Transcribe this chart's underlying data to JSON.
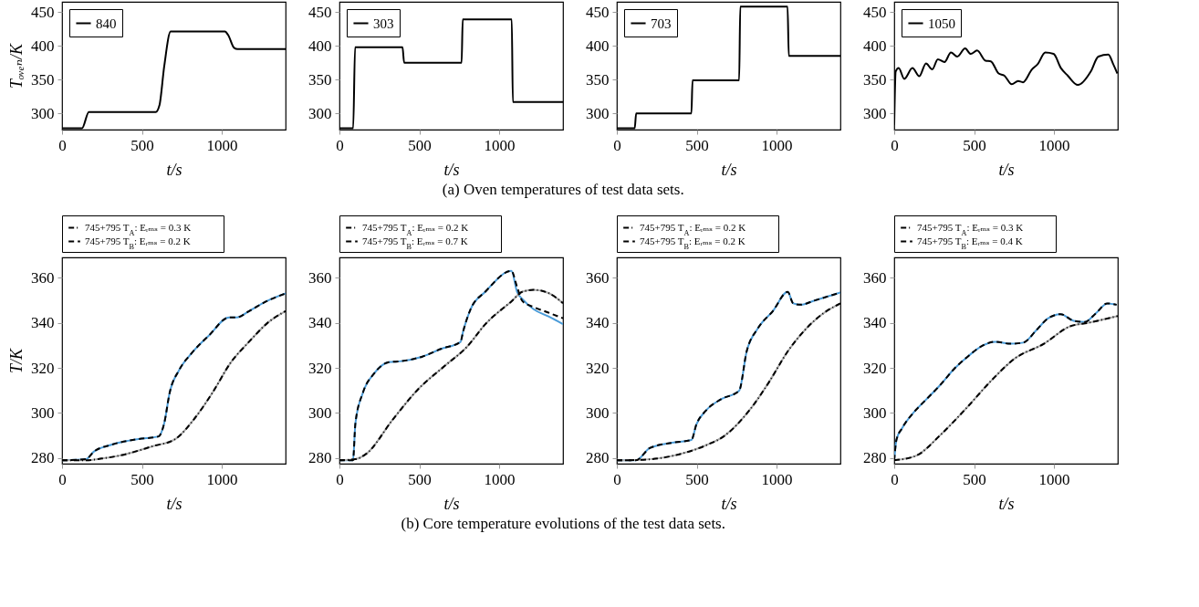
{
  "chart_data": [
    {
      "type": "line",
      "ylabel": "Tₒᵥₑₙ/K",
      "xlabel": "t/s",
      "xlim": [
        0,
        1400
      ],
      "ylim": [
        276,
        465
      ],
      "xticks": [
        0,
        500,
        1000
      ],
      "yticks": [
        300,
        350,
        400,
        450
      ],
      "legend": "top left",
      "annotations": [
        "(a) Oven temperatures of test data sets."
      ],
      "series": [
        {
          "name": "840",
          "color": "#000000",
          "x": [
            0,
            125,
            168,
            587,
            610,
            640,
            680,
            1020,
            1040,
            1077,
            1100,
            1400
          ],
          "values": [
            278,
            278,
            302,
            302,
            312,
            370,
            421,
            421,
            416,
            397,
            395,
            395
          ]
        }
      ]
    },
    {
      "type": "line",
      "xlabel": "t/s",
      "xlim": [
        0,
        1400
      ],
      "ylim": [
        276,
        465
      ],
      "xticks": [
        0,
        500,
        1000
      ],
      "yticks": [
        300,
        350,
        400,
        450
      ],
      "legend": "top left",
      "series": [
        {
          "name": "303",
          "color": "#000000",
          "x": [
            0,
            86,
            98,
            395,
            405,
            765,
            772,
            1079,
            1086,
            1400
          ],
          "values": [
            278,
            278,
            398,
            398,
            375,
            375,
            439,
            439,
            317,
            317
          ]
        }
      ]
    },
    {
      "type": "line",
      "xlabel": "t/s",
      "xlim": [
        0,
        1400
      ],
      "ylim": [
        276,
        465
      ],
      "xticks": [
        0,
        500,
        1000
      ],
      "yticks": [
        300,
        350,
        400,
        450
      ],
      "legend": "top left",
      "series": [
        {
          "name": "703",
          "color": "#000000",
          "x": [
            0,
            112,
            121,
            467,
            474,
            766,
            773,
            1069,
            1077,
            1400
          ],
          "values": [
            278,
            278,
            300,
            300,
            349,
            349,
            458,
            458,
            385,
            385
          ]
        }
      ]
    },
    {
      "type": "line",
      "xlabel": "t/s",
      "xlim": [
        0,
        1400
      ],
      "ylim": [
        276,
        465
      ],
      "xticks": [
        0,
        500,
        1000
      ],
      "yticks": [
        300,
        350,
        400,
        450
      ],
      "legend": "top left",
      "series": [
        {
          "name": "1050",
          "color": "#000000",
          "x": [
            0,
            9,
            28,
            63,
            114,
            157,
            199,
            238,
            273,
            315,
            355,
            395,
            444,
            479,
            519,
            572,
            605,
            654,
            689,
            736,
            776,
            806,
            862,
            899,
            946,
            998,
            1044,
            1086,
            1150,
            1231,
            1278,
            1341,
            1371,
            1397
          ],
          "values": [
            283,
            362,
            367,
            351,
            367,
            355,
            374,
            365,
            380,
            376,
            390,
            384,
            396,
            388,
            393,
            378,
            377,
            359,
            356,
            343,
            348,
            346,
            365,
            373,
            390,
            388,
            367,
            356,
            342,
            362,
            384,
            387,
            373,
            359
          ]
        }
      ]
    },
    {
      "type": "line",
      "ylabel": "T/K",
      "xlabel": "t/s",
      "xlim": [
        0,
        1400
      ],
      "ylim": [
        277.5,
        369
      ],
      "xticks": [
        0,
        500,
        1000
      ],
      "yticks": [
        280,
        300,
        320,
        340,
        360
      ],
      "legend": "top",
      "annotations": [
        "(b) Core temperature evolutions of the test data sets."
      ],
      "series": [
        {
          "color": "#4a9bd8",
          "x": [
            0,
            150,
            198,
            314,
            477,
            605,
            640,
            674,
            733,
            814,
            919,
            1047,
            1093,
            1174,
            1279,
            1400
          ],
          "values": [
            279,
            279.5,
            282.8,
            286,
            288.4,
            289.6,
            295.5,
            309,
            319,
            326.7,
            334.3,
            342.4,
            342.4,
            345.3,
            349.5,
            353
          ]
        },
        {
          "color": "#aaaaaa",
          "x": [
            0,
            150,
            250,
            360,
            570,
            709,
            826,
            942,
            1058,
            1174,
            1291,
            1400
          ],
          "values": [
            279,
            279,
            279.8,
            281.1,
            285.3,
            288.4,
            297.2,
            309,
            322.5,
            331.8,
            340.2,
            345.2
          ]
        },
        {
          "name": "745+795 T$_{A}$: Eᵣₘₛ = 0.3 K",
          "color": "#000000",
          "line_style": "dashdot",
          "x": [
            0,
            150,
            250,
            360,
            570,
            709,
            826,
            942,
            1058,
            1174,
            1291,
            1400
          ],
          "values": [
            279,
            279,
            279.8,
            281.1,
            285.3,
            288.4,
            297.2,
            309,
            322.5,
            331.8,
            340.2,
            345.2
          ]
        },
        {
          "name": "745+795 T$_{B}$: Eᵣₘₛ = 0.2 K",
          "color": "#000000",
          "line_style": "dashed",
          "x": [
            0,
            150,
            198,
            314,
            477,
            605,
            640,
            674,
            733,
            814,
            919,
            1047,
            1093,
            1174,
            1279,
            1400
          ],
          "values": [
            279,
            279.5,
            282.8,
            286,
            288.4,
            289.6,
            295.5,
            309,
            319,
            326.7,
            334.3,
            342.4,
            342.4,
            345.3,
            349.5,
            353
          ]
        }
      ]
    },
    {
      "type": "line",
      "xlabel": "t/s",
      "xlim": [
        0,
        1400
      ],
      "ylim": [
        277.5,
        369
      ],
      "xticks": [
        0,
        500,
        1000
      ],
      "yticks": [
        280,
        300,
        320,
        340,
        360
      ],
      "legend": "top",
      "series": [
        {
          "color": "#4a9bd8",
          "x": [
            0,
            85,
            100,
            147,
            216,
            309,
            390,
            519,
            635,
            758,
            774,
            821,
            914,
            1077,
            1112,
            1147,
            1216,
            1309,
            1400
          ],
          "values": [
            279,
            279,
            295.5,
            309,
            317.4,
            322.5,
            323,
            325,
            328.4,
            331.5,
            336,
            346,
            353.8,
            363,
            353.8,
            350.4,
            346,
            342.8,
            339.4
          ]
        },
        {
          "color": "#aaaaaa",
          "x": [
            0,
            100,
            170,
            333,
            495,
            658,
            798,
            914,
            1077,
            1147,
            1216,
            1309,
            1400
          ],
          "values": [
            279,
            279.5,
            282,
            297,
            310.7,
            320.8,
            329.3,
            339.4,
            349.5,
            353.8,
            354.6,
            353.2,
            348.7
          ]
        },
        {
          "name": "745+795 T$_{A}$: Eᵣₘₛ = 0.2 K",
          "color": "#000000",
          "line_style": "dashdot",
          "x": [
            0,
            100,
            170,
            333,
            495,
            658,
            798,
            914,
            1077,
            1147,
            1216,
            1309,
            1400
          ],
          "values": [
            279,
            279.5,
            282,
            297,
            310.7,
            320.8,
            329.3,
            339.4,
            349.5,
            353.8,
            354.6,
            353.2,
            348.7
          ]
        },
        {
          "name": "745+795 T$_{B}$: Eᵣₘₛ = 0.7 K",
          "color": "#000000",
          "line_style": "dashed",
          "x": [
            0,
            85,
            100,
            147,
            216,
            309,
            390,
            519,
            635,
            758,
            774,
            821,
            914,
            1077,
            1112,
            1147,
            1216,
            1309,
            1400
          ],
          "values": [
            279,
            279,
            295.5,
            309,
            317.4,
            322.5,
            323,
            325,
            328.4,
            331.5,
            336,
            346,
            353.8,
            363,
            356,
            349.5,
            347,
            344.5,
            342
          ]
        }
      ]
    },
    {
      "type": "line",
      "xlabel": "t/s",
      "xlim": [
        0,
        1400
      ],
      "ylim": [
        277.5,
        369
      ],
      "xticks": [
        0,
        500,
        1000
      ],
      "yticks": [
        280,
        300,
        320,
        340,
        360
      ],
      "legend": "top",
      "series": [
        {
          "color": "#4a9bd8",
          "x": [
            0,
            120,
            206,
            346,
            467,
            498,
            556,
            650,
            766,
            813,
            883,
            977,
            1070,
            1105,
            1152,
            1234,
            1400
          ],
          "values": [
            279,
            279,
            284.4,
            286.8,
            288,
            294.9,
            300.9,
            306,
            309.9,
            327.3,
            337.5,
            345.2,
            353.7,
            348.6,
            348,
            349.8,
            353.4
          ]
        },
        {
          "color": "#aaaaaa",
          "x": [
            0,
            150,
            369,
            556,
            673,
            836,
            953,
            1070,
            1187,
            1280,
            1400
          ],
          "values": [
            279,
            279.2,
            281.3,
            285.6,
            289.8,
            301.7,
            313.7,
            327.3,
            337.5,
            343.5,
            348.6
          ]
        },
        {
          "name": "745+795 T$_{A}$: Eᵣₘₛ = 0.2 K",
          "color": "#000000",
          "line_style": "dashdot",
          "x": [
            0,
            150,
            369,
            556,
            673,
            836,
            953,
            1070,
            1187,
            1280,
            1400
          ],
          "values": [
            279,
            279.2,
            281.3,
            285.6,
            289.8,
            301.7,
            313.7,
            327.3,
            337.5,
            343.5,
            348.6
          ]
        },
        {
          "name": "745+795 T$_{B}$: Eᵣₘₛ = 0.2 K",
          "color": "#000000",
          "line_style": "dashed",
          "x": [
            0,
            120,
            206,
            346,
            467,
            498,
            556,
            650,
            766,
            813,
            883,
            977,
            1070,
            1105,
            1152,
            1234,
            1400
          ],
          "values": [
            279,
            279,
            284.4,
            286.8,
            288,
            294.9,
            300.9,
            306,
            309.9,
            327.3,
            337.5,
            345.2,
            353.7,
            348.6,
            348,
            349.8,
            353.4
          ]
        }
      ]
    },
    {
      "type": "line",
      "xlabel": "t/s",
      "xlim": [
        0,
        1400
      ],
      "ylim": [
        277.5,
        369
      ],
      "xticks": [
        0,
        500,
        1000
      ],
      "yticks": [
        280,
        300,
        320,
        340,
        360
      ],
      "legend": "top",
      "series": [
        {
          "color": "#4a9bd8",
          "x": [
            0,
            14,
            49,
            119,
            189,
            283,
            376,
            470,
            551,
            633,
            726,
            808,
            890,
            960,
            1042,
            1124,
            1194,
            1264,
            1334,
            1393
          ],
          "values": [
            279,
            288.1,
            293.2,
            300,
            305.2,
            312,
            319.6,
            325.6,
            329.8,
            331.6,
            330.7,
            331.2,
            336.7,
            341.8,
            343.8,
            340.9,
            340.4,
            344.3,
            348.6,
            348
          ]
        },
        {
          "color": "#aaaaaa",
          "x": [
            0,
            142,
            283,
            446,
            610,
            750,
            937,
            1100,
            1217,
            1400
          ],
          "values": [
            279,
            281.2,
            289.8,
            301.7,
            314.5,
            323.9,
            330.7,
            338.4,
            340,
            343
          ]
        },
        {
          "name": "745+795 T$_{A}$: Eᵣₘₛ = 0.3 K",
          "color": "#000000",
          "line_style": "dashdot",
          "x": [
            0,
            142,
            283,
            446,
            610,
            750,
            937,
            1100,
            1217,
            1400
          ],
          "values": [
            279,
            281.2,
            289.8,
            301.7,
            314.5,
            323.9,
            330.7,
            338.4,
            340,
            343
          ]
        },
        {
          "name": "745+795 T$_{B}$: Eᵣₘₛ = 0.4 K",
          "color": "#000000",
          "line_style": "dashed",
          "x": [
            0,
            14,
            49,
            119,
            189,
            283,
            376,
            470,
            551,
            633,
            726,
            808,
            890,
            960,
            1042,
            1124,
            1194,
            1264,
            1334,
            1393
          ],
          "values": [
            279,
            288.1,
            293.2,
            300,
            305.2,
            312,
            319.6,
            325.6,
            329.8,
            331.6,
            330.7,
            331.2,
            336.7,
            341.8,
            343.8,
            340.9,
            340.4,
            344.3,
            348.6,
            348
          ]
        }
      ]
    }
  ]
}
